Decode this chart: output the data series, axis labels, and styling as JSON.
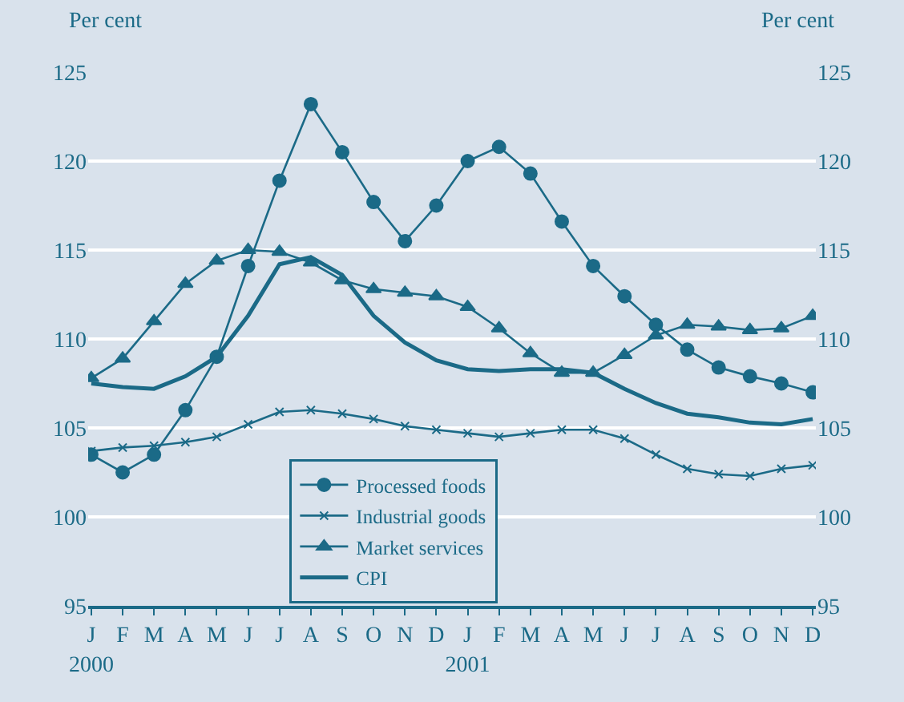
{
  "chart_data": {
    "type": "line",
    "ylabel": "Per cent",
    "y2label": "Per cent",
    "categories": [
      "J\n2000",
      "F",
      "M",
      "A",
      "M",
      "J",
      "J",
      "A",
      "S",
      "O",
      "N",
      "D",
      "J\n2001",
      "F",
      "M",
      "A",
      "M",
      "J",
      "J",
      "A",
      "S",
      "O",
      "N",
      "D"
    ],
    "series": [
      {
        "name": "Processed foods",
        "color": "#1b6a87",
        "marker": "circle",
        "values": [
          103.5,
          102.5,
          103.5,
          106,
          109,
          114.1,
          118.9,
          123.2,
          120.5,
          117.7,
          115.5,
          117.5,
          120,
          120.8,
          119.3,
          116.6,
          114.1,
          112.4,
          110.8,
          109.4,
          108.4,
          107.9,
          107.5,
          107
        ]
      },
      {
        "name": "Industrial goods",
        "color": "#1b6a87",
        "marker": "cross",
        "values": [
          103.7,
          103.9,
          104.0,
          104.2,
          104.5,
          105.2,
          105.9,
          106.0,
          105.8,
          105.5,
          105.1,
          104.9,
          104.7,
          104.5,
          104.7,
          104.9,
          104.9,
          104.4,
          103.5,
          102.7,
          102.4,
          102.3,
          102.7,
          102.9
        ]
      },
      {
        "name": "Market services",
        "color": "#1b6a87",
        "marker": "triangle",
        "values": [
          107.8,
          108.9,
          111.0,
          113.1,
          114.4,
          115.0,
          114.9,
          114.3,
          113.3,
          112.8,
          112.6,
          112.4,
          111.8,
          110.6,
          109.2,
          108.1,
          108.1,
          109.1,
          110.2,
          110.8,
          110.7,
          110.5,
          110.6,
          111.3
        ]
      },
      {
        "name": "CPI",
        "color": "#1b6a87",
        "marker": "none",
        "values": [
          107.5,
          107.3,
          107.2,
          107.9,
          109.0,
          111.3,
          114.2,
          114.6,
          113.6,
          111.3,
          109.8,
          108.8,
          108.3,
          108.2,
          108.3,
          108.3,
          108.1,
          107.2,
          106.4,
          105.8,
          105.6,
          105.3,
          105.2,
          105.5
        ]
      }
    ],
    "ylim": [
      95,
      125
    ],
    "yticks": [
      95,
      100,
      105,
      110,
      115,
      120,
      125
    ],
    "y2lim": [
      95,
      125
    ],
    "y2ticks": [
      95,
      100,
      105,
      110,
      115,
      120,
      125
    ],
    "grid": "y",
    "legend": "bottom"
  }
}
